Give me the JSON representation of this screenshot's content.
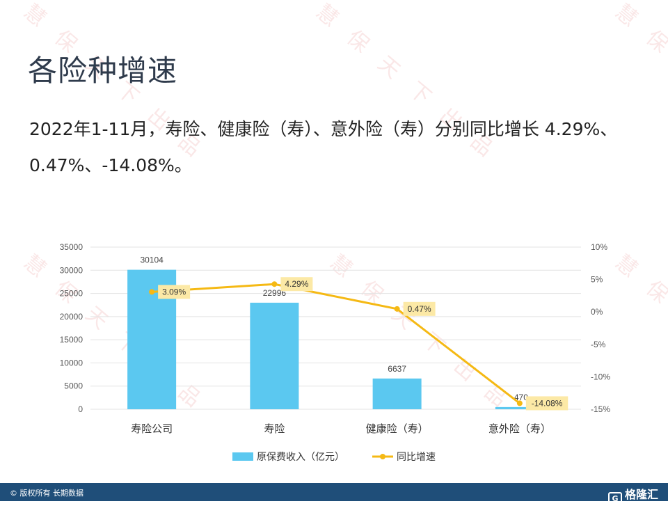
{
  "slide": {
    "title": "各险种增速",
    "description": "2022年1-11月，寿险、健康险（寿）、意外险（寿）分别同比增长 4.29%、0.47%、-14.08%。",
    "watermark": "慧保天下出品",
    "footer_copyright": "© 版权所有 长期数据",
    "brand": "格隆汇",
    "brand_mark": "G"
  },
  "chart_data": {
    "type": "bar",
    "categories": [
      "寿险公司",
      "寿险",
      "健康险（寿）",
      "意外险（寿）"
    ],
    "series": [
      {
        "name": "原保费收入（亿元）",
        "type": "bar",
        "axis": "left",
        "values": [
          30104,
          22996,
          6637,
          470
        ],
        "labels": [
          "30104",
          "22996",
          "6637",
          "470"
        ],
        "color": "#5bc8f0"
      },
      {
        "name": "同比增速",
        "type": "line",
        "axis": "right",
        "values": [
          3.09,
          4.29,
          0.47,
          -14.08
        ],
        "labels": [
          "3.09%",
          "4.29%",
          "0.47%",
          "-14.08%"
        ],
        "color": "#f5b914"
      }
    ],
    "y_left": {
      "min": 0,
      "max": 35000,
      "ticks": [
        "0",
        "5000",
        "10000",
        "15000",
        "20000",
        "25000",
        "30000",
        "35000"
      ]
    },
    "y_right": {
      "min": -15,
      "max": 10,
      "ticks": [
        "-15%",
        "-10%",
        "-5%",
        "0%",
        "5%",
        "10%"
      ]
    },
    "grid": true,
    "legend": "bottom",
    "label_box_color": "#fce9a6"
  }
}
